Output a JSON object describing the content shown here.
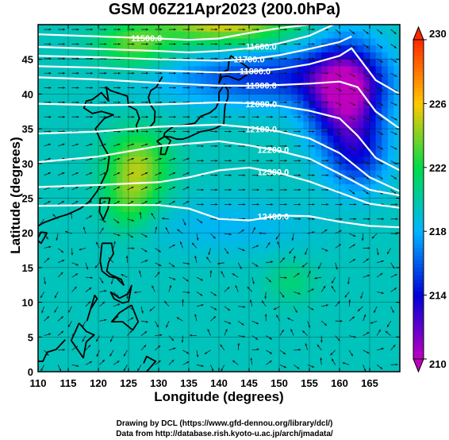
{
  "chart_data": {
    "type": "heatmap",
    "title": "GSM 06Z21Apr2023 (200.0hPa)",
    "xlabel": "Longitude (degrees)",
    "ylabel": "Latitude (degrees)",
    "xlim": [
      110,
      170
    ],
    "ylim": [
      0,
      50
    ],
    "x_ticks": [
      110,
      115,
      120,
      125,
      130,
      135,
      140,
      145,
      150,
      155,
      160,
      165
    ],
    "y_ticks": [
      0,
      5,
      10,
      15,
      20,
      25,
      30,
      35,
      40,
      45
    ],
    "colorbar": {
      "min": 210,
      "max": 230,
      "ticks": [
        210,
        214,
        218,
        222,
        226,
        230
      ],
      "extend": "both"
    },
    "contours": [
      {
        "label": "11500.0",
        "points": [
          [
            110,
            48.6
          ],
          [
            120,
            48.3
          ],
          [
            130,
            48.0
          ],
          [
            135,
            47.8
          ],
          [
            140,
            48.0
          ],
          [
            145,
            48.8
          ],
          [
            150,
            49.5
          ],
          [
            155,
            50.0
          ]
        ]
      },
      {
        "label": "11600.0",
        "points": [
          [
            110,
            46.8
          ],
          [
            120,
            46.5
          ],
          [
            130,
            46.2
          ],
          [
            135,
            46.0
          ],
          [
            140,
            46.2
          ],
          [
            145,
            46.6
          ],
          [
            150,
            47.3
          ],
          [
            155,
            48.4
          ],
          [
            159,
            50.0
          ]
        ]
      },
      {
        "label": "11700.0",
        "points": [
          [
            110,
            45.5
          ],
          [
            120,
            45.3
          ],
          [
            130,
            45.0
          ],
          [
            140,
            44.8
          ],
          [
            145,
            45.0
          ],
          [
            150,
            45.6
          ],
          [
            155,
            46.5
          ],
          [
            160,
            47.5
          ],
          [
            162,
            48.3
          ]
        ]
      },
      {
        "label": "11800.0",
        "points": [
          [
            110,
            44.0
          ],
          [
            120,
            43.8
          ],
          [
            130,
            43.4
          ],
          [
            140,
            43.1
          ],
          [
            145,
            43.2
          ],
          [
            150,
            43.6
          ],
          [
            155,
            44.3
          ],
          [
            160,
            45.5
          ],
          [
            162,
            46.6
          ],
          [
            166,
            42.0
          ],
          [
            170,
            40.0
          ]
        ]
      },
      {
        "label": "11900.0",
        "points": [
          [
            110,
            42.4
          ],
          [
            120,
            42.1
          ],
          [
            130,
            41.6
          ],
          [
            140,
            41.2
          ],
          [
            145,
            41.2
          ],
          [
            150,
            41.3
          ],
          [
            155,
            41.5
          ],
          [
            160,
            41.8
          ],
          [
            163,
            41.0
          ],
          [
            166,
            37.5
          ],
          [
            170,
            35.0
          ]
        ]
      },
      {
        "label": "12000.0",
        "points": [
          [
            110,
            38.6
          ],
          [
            120,
            38.4
          ],
          [
            130,
            38.5
          ],
          [
            140,
            38.8
          ],
          [
            145,
            38.7
          ],
          [
            150,
            38.3
          ],
          [
            155,
            37.6
          ],
          [
            160,
            36.5
          ],
          [
            163,
            34.0
          ],
          [
            166,
            30.8
          ],
          [
            170,
            29.0
          ]
        ]
      },
      {
        "label": "12100.0",
        "points": [
          [
            110,
            34.3
          ],
          [
            120,
            34.6
          ],
          [
            130,
            35.3
          ],
          [
            140,
            35.6
          ],
          [
            145,
            35.2
          ],
          [
            150,
            34.6
          ],
          [
            155,
            33.6
          ],
          [
            160,
            31.5
          ],
          [
            165,
            28.0
          ],
          [
            170,
            26.0
          ]
        ]
      },
      {
        "label": "12200.0",
        "points": [
          [
            110,
            30.2
          ],
          [
            120,
            31.0
          ],
          [
            130,
            32.5
          ],
          [
            140,
            33.2
          ],
          [
            145,
            32.6
          ],
          [
            150,
            31.8
          ],
          [
            155,
            30.7
          ],
          [
            160,
            28.5
          ],
          [
            165,
            26.2
          ],
          [
            170,
            25.4
          ]
        ]
      },
      {
        "label": "12300.0",
        "points": [
          [
            110,
            26.6
          ],
          [
            120,
            26.9
          ],
          [
            130,
            27.3
          ],
          [
            135,
            28.0
          ],
          [
            140,
            29.0
          ],
          [
            145,
            29.4
          ],
          [
            150,
            28.6
          ],
          [
            155,
            27.4
          ],
          [
            160,
            25.8
          ],
          [
            165,
            24.2
          ],
          [
            170,
            23.6
          ]
        ]
      },
      {
        "label": "12400.0",
        "points": [
          [
            110,
            23.9
          ],
          [
            120,
            24.0
          ],
          [
            130,
            24.0
          ],
          [
            135,
            23.5
          ],
          [
            140,
            22.0
          ],
          [
            145,
            21.8
          ],
          [
            150,
            22.5
          ],
          [
            155,
            22.4
          ],
          [
            160,
            21.6
          ],
          [
            165,
            21.0
          ],
          [
            170,
            20.8
          ]
        ]
      }
    ]
  },
  "colors": {
    "scale": [
      "#bf00bf",
      "#0000d8",
      "#00b4ff",
      "#00dc4a",
      "#ffc800",
      "#ff2800"
    ],
    "arrow": "#1a1a1a",
    "contour": "#ffffff",
    "land": "#000000"
  },
  "credits": {
    "line1": "Drawing by DCL (https://www.gfd-dennou.org/library/dcl/)",
    "line2": "Data from http://database.rish.kyoto-u.ac.jp/arch/jmadata/"
  }
}
